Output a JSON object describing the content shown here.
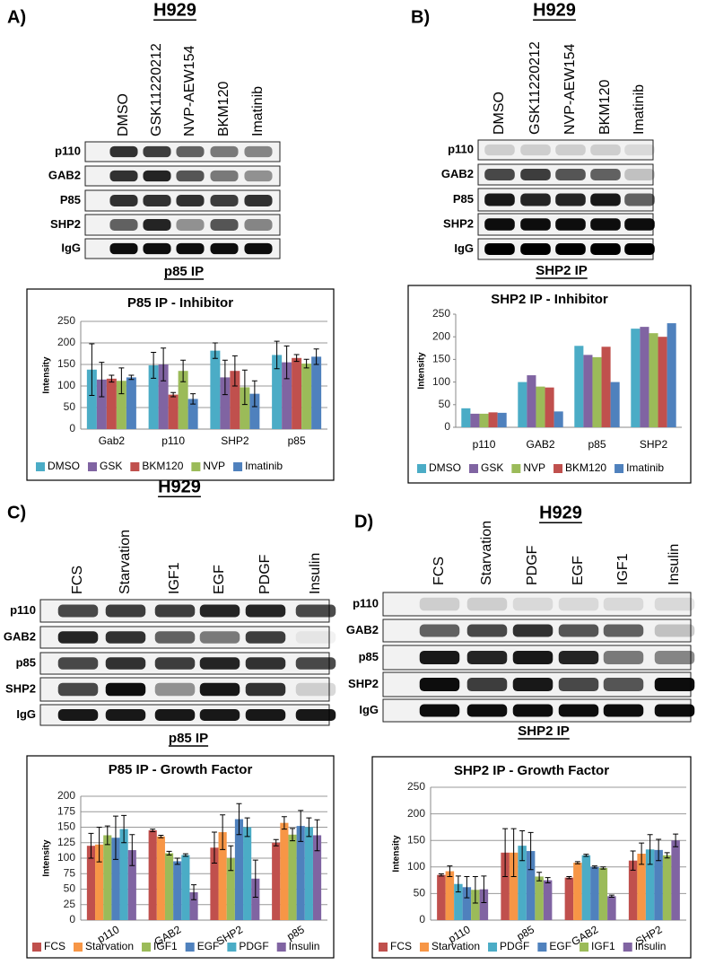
{
  "panels": [
    {
      "letter": "A)",
      "cell_line": "H929",
      "lanes": [
        "DMSO",
        "GSK11220212",
        "NVP-AEW154",
        "BKM120",
        "Imatinib"
      ],
      "blots": [
        "p110",
        "GAB2",
        "P85",
        "SHP2",
        "IgG"
      ],
      "ip": "p85 IP"
    },
    {
      "letter": "B)",
      "cell_line": "H929",
      "lanes": [
        "DMSO",
        "GSK11220212",
        "NVP-AEW154",
        "BKM120",
        "Imatinib"
      ],
      "blots": [
        "p110",
        "GAB2",
        "P85",
        "SHP2",
        "IgG"
      ],
      "ip": "SHP2 IP"
    },
    {
      "letter": "C)",
      "cell_line": "H929",
      "lanes": [
        "FCS",
        "Starvation",
        "IGF1",
        "EGF",
        "PDGF",
        "Insulin"
      ],
      "blots": [
        "p110",
        "GAB2",
        "p85",
        "SHP2",
        "IgG"
      ],
      "ip": "p85 IP"
    },
    {
      "letter": "D)",
      "cell_line": "H929",
      "lanes": [
        "FCS",
        "Starvation",
        "PDGF",
        "EGF",
        "IGF1",
        "Insulin"
      ],
      "blots": [
        "p110",
        "GAB2",
        "p85",
        "SHP2",
        "IgG"
      ],
      "ip": "SHP2 IP"
    }
  ],
  "chart_data": [
    {
      "type": "bar",
      "title": "P85 IP - Inhibitor",
      "y_label": "Intensity",
      "grid": true,
      "categories": [
        "Gab2",
        "p110",
        "SHP2",
        "p85"
      ],
      "ylim": [
        0,
        250
      ],
      "yticks": [
        0,
        50,
        100,
        150,
        200,
        250
      ],
      "series": [
        {
          "name": "DMSO",
          "color": "#4bacc6",
          "values": [
            138,
            148,
            182,
            172
          ],
          "errors": [
            60,
            30,
            18,
            32
          ]
        },
        {
          "name": "GSK",
          "color": "#8064a2",
          "values": [
            115,
            150,
            120,
            155
          ],
          "errors": [
            40,
            38,
            40,
            38
          ]
        },
        {
          "name": "BKM120",
          "color": "#c0504d",
          "values": [
            117,
            80,
            135,
            165
          ],
          "errors": [
            8,
            5,
            35,
            8
          ]
        },
        {
          "name": "NVP",
          "color": "#9bbb59",
          "values": [
            112,
            135,
            97,
            152
          ],
          "errors": [
            30,
            25,
            40,
            10
          ]
        },
        {
          "name": "Imatinib",
          "color": "#4f81bd",
          "values": [
            120,
            70,
            82,
            168
          ],
          "errors": [
            5,
            12,
            30,
            18
          ]
        }
      ]
    },
    {
      "type": "bar",
      "title": "SHP2 IP - Inhibitor",
      "y_label": "Intensity",
      "grid": false,
      "categories": [
        "p110",
        "GAB2",
        "p85",
        "SHP2"
      ],
      "ylim": [
        0,
        250
      ],
      "yticks": [
        0,
        50,
        100,
        150,
        200,
        250
      ],
      "series": [
        {
          "name": "DMSO",
          "color": "#4bacc6",
          "values": [
            42,
            100,
            180,
            218
          ]
        },
        {
          "name": "GSK",
          "color": "#8064a2",
          "values": [
            30,
            115,
            160,
            222
          ]
        },
        {
          "name": "NVP",
          "color": "#9bbb59",
          "values": [
            30,
            90,
            155,
            208
          ]
        },
        {
          "name": "BKM120",
          "color": "#c0504d",
          "values": [
            33,
            88,
            178,
            200
          ]
        },
        {
          "name": "Imatinib",
          "color": "#4f81bd",
          "values": [
            32,
            35,
            100,
            230
          ]
        }
      ]
    },
    {
      "type": "bar",
      "title": "P85 IP - Growth Factor",
      "y_label": "Intensity",
      "grid": true,
      "categories": [
        "p110",
        "GAB2",
        "SHP2",
        "p85"
      ],
      "ylim": [
        0,
        200
      ],
      "yticks": [
        0,
        25,
        50,
        75,
        100,
        125,
        150,
        175,
        200
      ],
      "series": [
        {
          "name": "FCS",
          "color": "#c0504d",
          "values": [
            120,
            145,
            117,
            125
          ],
          "errors": [
            20,
            2,
            25,
            5
          ]
        },
        {
          "name": "Starvation",
          "color": "#f79646",
          "values": [
            122,
            135,
            142,
            157
          ],
          "errors": [
            28,
            2,
            28,
            10
          ]
        },
        {
          "name": "IGF1",
          "color": "#9bbb59",
          "values": [
            137,
            108,
            100,
            138
          ],
          "errors": [
            15,
            3,
            20,
            10
          ]
        },
        {
          "name": "EGF",
          "color": "#4f81bd",
          "values": [
            133,
            95,
            163,
            152
          ],
          "errors": [
            35,
            5,
            25,
            25
          ]
        },
        {
          "name": "PDGF",
          "color": "#4bacc6",
          "values": [
            147,
            105,
            150,
            150
          ],
          "errors": [
            22,
            2,
            15,
            15
          ]
        },
        {
          "name": "Insulin",
          "color": "#8064a2",
          "values": [
            113,
            45,
            67,
            137
          ],
          "errors": [
            25,
            12,
            30,
            25
          ]
        }
      ]
    },
    {
      "type": "bar",
      "title": "SHP2 IP - Growth Factor",
      "y_label": "Intensity",
      "grid": true,
      "categories": [
        "p110",
        "p85",
        "GAB2",
        "SHP2"
      ],
      "ylim": [
        0,
        250
      ],
      "yticks": [
        0,
        50,
        100,
        150,
        200,
        250
      ],
      "series": [
        {
          "name": "FCS",
          "color": "#c0504d",
          "values": [
            85,
            127,
            80,
            112
          ],
          "errors": [
            2,
            45,
            2,
            18
          ]
        },
        {
          "name": "Starvation",
          "color": "#f79646",
          "values": [
            92,
            127,
            108,
            125
          ],
          "errors": [
            10,
            45,
            2,
            20
          ]
        },
        {
          "name": "PDGF",
          "color": "#4bacc6",
          "values": [
            68,
            140,
            122,
            133
          ],
          "errors": [
            15,
            28,
            2,
            28
          ]
        },
        {
          "name": "EGF",
          "color": "#4f81bd",
          "values": [
            62,
            130,
            100,
            132
          ],
          "errors": [
            20,
            35,
            2,
            20
          ]
        },
        {
          "name": "IGF1",
          "color": "#9bbb59",
          "values": [
            57,
            82,
            98,
            122
          ],
          "errors": [
            25,
            8,
            2,
            5
          ]
        },
        {
          "name": "Insulin",
          "color": "#8064a2",
          "values": [
            58,
            75,
            45,
            150
          ],
          "errors": [
            25,
            5,
            2,
            12
          ]
        }
      ]
    }
  ]
}
